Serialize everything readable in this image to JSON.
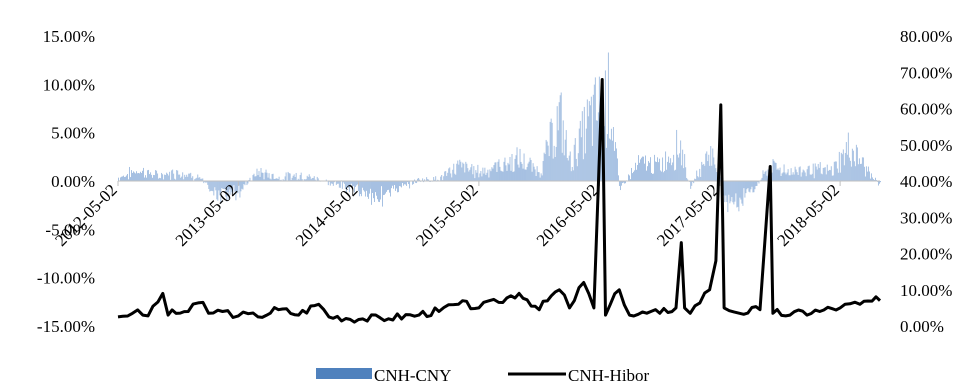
{
  "chart_data": {
    "type": "bar+line",
    "title": "",
    "left_axis": {
      "ticks": [
        "15.00%",
        "10.00%",
        "5.00%",
        "0.00%",
        "-5.00%",
        "-10.00%",
        "-15.00%"
      ],
      "values": [
        15,
        10,
        5,
        0,
        -5,
        -10,
        -15
      ],
      "range": [
        -15,
        15
      ]
    },
    "right_axis": {
      "ticks": [
        "80.00%",
        "70.00%",
        "60.00%",
        "50.00%",
        "40.00%",
        "30.00%",
        "20.00%",
        "10.00%",
        "0.00%"
      ],
      "values": [
        80,
        70,
        60,
        50,
        40,
        30,
        20,
        10,
        0
      ],
      "range": [
        0,
        80
      ]
    },
    "x_axis": {
      "ticks": [
        "2012-05-02",
        "2013-05-02",
        "2014-05-02",
        "2015-05-02",
        "2016-05-02",
        "2017-05-02",
        "2018-05-02"
      ],
      "range": [
        "2012-05-02",
        "2018-08-31"
      ]
    },
    "legend": {
      "position": "bottom",
      "entries": [
        {
          "label": "CNH-CNY",
          "color": "#4f81bd",
          "marker": "bar"
        },
        {
          "label": "CNH-Hibor",
          "color": "#000000",
          "marker": "line"
        }
      ]
    },
    "series": [
      {
        "name": "CNH-CNY",
        "type": "bar",
        "axis": "left",
        "color": "#9dbadf",
        "anchors": [
          [
            "2012-05-02",
            0.5
          ],
          [
            "2012-07-01",
            1.8
          ],
          [
            "2012-09-01",
            0.8
          ],
          [
            "2012-11-01",
            1.5
          ],
          [
            "2013-01-01",
            0.6
          ],
          [
            "2013-03-01",
            -2.5
          ],
          [
            "2013-05-02",
            -1.8
          ],
          [
            "2013-07-01",
            1.5
          ],
          [
            "2013-09-01",
            0.5
          ],
          [
            "2013-11-01",
            1.0
          ],
          [
            "2014-01-01",
            0.3
          ],
          [
            "2014-03-01",
            -0.8
          ],
          [
            "2014-05-02",
            -1.5
          ],
          [
            "2014-07-01",
            -2.7
          ],
          [
            "2014-09-01",
            -1.2
          ],
          [
            "2014-11-01",
            0.2
          ],
          [
            "2015-01-01",
            0.4
          ],
          [
            "2015-03-01",
            2.5
          ],
          [
            "2015-05-02",
            1.5
          ],
          [
            "2015-07-01",
            2.5
          ],
          [
            "2015-09-01",
            3.5
          ],
          [
            "2015-11-01",
            1.5
          ],
          [
            "2016-01-01",
            10.5
          ],
          [
            "2016-02-01",
            3.0
          ],
          [
            "2016-04-01",
            10.0
          ],
          [
            "2016-06-01",
            14.0
          ],
          [
            "2016-07-01",
            -1.0
          ],
          [
            "2016-09-01",
            3.0
          ],
          [
            "2016-11-01",
            2.5
          ],
          [
            "2017-01-01",
            6.0
          ],
          [
            "2017-02-01",
            -1.0
          ],
          [
            "2017-04-01",
            5.0
          ],
          [
            "2017-06-01",
            -4.5
          ],
          [
            "2017-08-01",
            -2.0
          ],
          [
            "2017-10-01",
            2.5
          ],
          [
            "2017-12-01",
            1.5
          ],
          [
            "2018-02-01",
            2.0
          ],
          [
            "2018-04-01",
            1.5
          ],
          [
            "2018-06-01",
            5.5
          ],
          [
            "2018-08-31",
            -1.0
          ]
        ]
      },
      {
        "name": "CNH-Hibor",
        "type": "line",
        "axis": "right",
        "color": "#000000",
        "points": [
          [
            "2012-05-02",
            2.5
          ],
          [
            "2012-06-15",
            3.5
          ],
          [
            "2012-08-01",
            2.8
          ],
          [
            "2012-09-15",
            9.0
          ],
          [
            "2012-10-01",
            3.0
          ],
          [
            "2012-12-01",
            4.0
          ],
          [
            "2013-01-15",
            6.5
          ],
          [
            "2013-02-01",
            3.5
          ],
          [
            "2013-03-15",
            4.0
          ],
          [
            "2013-05-02",
            2.8
          ],
          [
            "2013-07-01",
            2.5
          ],
          [
            "2013-09-01",
            4.5
          ],
          [
            "2013-11-01",
            3.0
          ],
          [
            "2014-01-01",
            6.0
          ],
          [
            "2014-02-01",
            2.5
          ],
          [
            "2014-05-02",
            1.8
          ],
          [
            "2014-08-01",
            2.0
          ],
          [
            "2014-11-01",
            3.0
          ],
          [
            "2015-01-01",
            4.0
          ],
          [
            "2015-03-01",
            6.0
          ],
          [
            "2015-05-02",
            5.0
          ],
          [
            "2015-07-01",
            6.5
          ],
          [
            "2015-09-01",
            9.0
          ],
          [
            "2015-11-01",
            4.5
          ],
          [
            "2016-01-01",
            10.0
          ],
          [
            "2016-02-01",
            5.0
          ],
          [
            "2016-03-15",
            12.0
          ],
          [
            "2016-04-15",
            5.0
          ],
          [
            "2016-05-10",
            68.0
          ],
          [
            "2016-05-20",
            3.0
          ],
          [
            "2016-07-01",
            10.0
          ],
          [
            "2016-08-01",
            3.0
          ],
          [
            "2016-11-01",
            3.5
          ],
          [
            "2016-12-20",
            5.0
          ],
          [
            "2017-01-05",
            23.0
          ],
          [
            "2017-01-15",
            5.0
          ],
          [
            "2017-02-01",
            3.5
          ],
          [
            "2017-04-01",
            10.0
          ],
          [
            "2017-04-20",
            18.0
          ],
          [
            "2017-05-05",
            61.0
          ],
          [
            "2017-05-15",
            5.0
          ],
          [
            "2017-07-01",
            3.5
          ],
          [
            "2017-09-01",
            4.5
          ],
          [
            "2017-10-02",
            44.0
          ],
          [
            "2017-10-10",
            3.5
          ],
          [
            "2017-12-01",
            3.0
          ],
          [
            "2018-03-01",
            4.0
          ],
          [
            "2018-05-02",
            5.0
          ],
          [
            "2018-07-01",
            6.0
          ],
          [
            "2018-08-31",
            7.0
          ]
        ]
      }
    ]
  }
}
